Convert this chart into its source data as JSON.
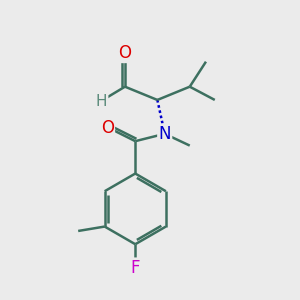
{
  "background_color": "#ebebeb",
  "bond_color": "#3d7060",
  "bond_width": 1.8,
  "atom_colors": {
    "O": "#dd0000",
    "N": "#0000cc",
    "F": "#cc00cc",
    "H": "#5a8a7a",
    "C": "#3d7060"
  },
  "font_size": 11,
  "figsize": [
    3.0,
    3.0
  ],
  "dpi": 100
}
